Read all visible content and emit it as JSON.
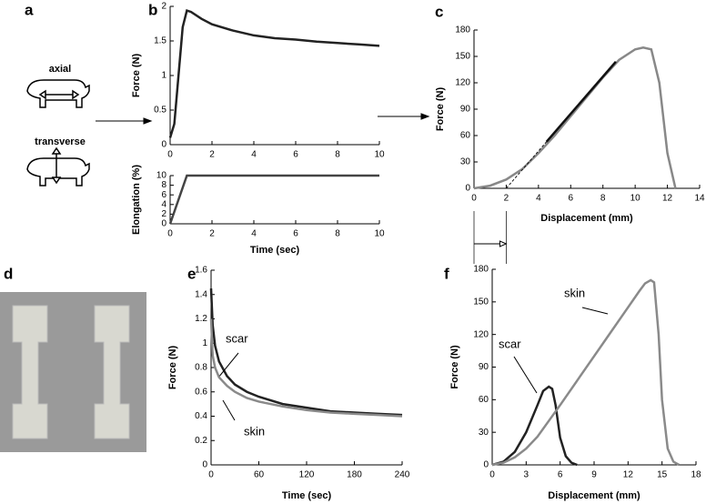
{
  "panel_labels": [
    "a",
    "b",
    "c",
    "d",
    "e",
    "f"
  ],
  "diagram": {
    "labels": [
      "axial",
      "transverse"
    ]
  },
  "chart_data": [
    {
      "type": "line",
      "ylabel": "Force (N)",
      "xlim": [
        0,
        10
      ],
      "xticks": [
        0,
        2,
        4,
        6,
        8,
        10
      ],
      "ylim": [
        0,
        2
      ],
      "yticks": [
        0,
        0.5,
        1,
        1.5,
        2
      ],
      "series": [
        {
          "color": "#222222",
          "x": [
            0,
            0.2,
            0.4,
            0.6,
            0.8,
            1,
            1.5,
            2,
            3,
            4,
            5,
            6,
            7,
            8,
            9,
            10
          ],
          "values": [
            0.1,
            0.3,
            1.0,
            1.7,
            1.94,
            1.92,
            1.82,
            1.74,
            1.65,
            1.58,
            1.54,
            1.52,
            1.49,
            1.47,
            1.45,
            1.43
          ]
        }
      ]
    },
    {
      "type": "line",
      "xlabel": "Time (sec)",
      "ylabel": "Elongation (%)",
      "xlim": [
        0,
        10
      ],
      "xticks": [
        0,
        2,
        4,
        6,
        8,
        10
      ],
      "ylim": [
        0,
        10
      ],
      "yticks": [
        0,
        2,
        4,
        6,
        8,
        10
      ],
      "series": [
        {
          "color": "#444444",
          "x": [
            0,
            0.8,
            10
          ],
          "values": [
            0,
            10,
            10
          ]
        }
      ]
    },
    {
      "type": "line",
      "xlabel": "Displacement (mm)",
      "ylabel": "Force (N)",
      "xlim": [
        0,
        14
      ],
      "xticks": [
        0,
        2,
        4,
        6,
        8,
        10,
        12,
        14
      ],
      "ylim": [
        0,
        180
      ],
      "yticks": [
        0,
        30,
        60,
        90,
        120,
        150,
        180
      ],
      "series": [
        {
          "color": "#888888",
          "x": [
            0,
            1,
            2,
            3,
            4,
            5,
            6,
            7,
            8,
            9,
            10,
            10.5,
            11,
            11.5,
            12,
            12.5
          ],
          "values": [
            0,
            3,
            10,
            22,
            40,
            60,
            82,
            104,
            126,
            146,
            158,
            160,
            158,
            120,
            40,
            0
          ]
        },
        {
          "color": "#111111",
          "x": [
            4.5,
            8.8
          ],
          "values": [
            53,
            144
          ]
        },
        {
          "color": "#111111",
          "style": "dashed",
          "x": [
            2,
            4.5
          ],
          "values": [
            0,
            53
          ]
        }
      ],
      "arrow": [
        0,
        2
      ]
    },
    {
      "type": "line",
      "xlabel": "Time (sec)",
      "ylabel": "Force (N)",
      "xlim": [
        0,
        240
      ],
      "xticks": [
        0,
        60,
        120,
        180,
        240
      ],
      "ylim": [
        0,
        1.6
      ],
      "yticks": [
        0,
        0.2,
        0.4,
        0.6,
        0.8,
        1,
        1.2,
        1.4,
        1.6
      ],
      "series": [
        {
          "name": "scar",
          "color": "#222222",
          "x": [
            0,
            2,
            5,
            10,
            20,
            30,
            45,
            60,
            90,
            120,
            150,
            180,
            210,
            240
          ],
          "values": [
            1.45,
            1.15,
            0.98,
            0.85,
            0.73,
            0.66,
            0.6,
            0.56,
            0.5,
            0.47,
            0.44,
            0.43,
            0.42,
            0.41
          ]
        },
        {
          "name": "skin",
          "color": "#8a8a8a",
          "x": [
            0,
            2,
            5,
            10,
            20,
            30,
            45,
            60,
            90,
            120,
            150,
            180,
            210,
            240
          ],
          "values": [
            1.2,
            0.9,
            0.8,
            0.72,
            0.65,
            0.6,
            0.55,
            0.52,
            0.48,
            0.45,
            0.43,
            0.42,
            0.41,
            0.4
          ]
        }
      ]
    },
    {
      "type": "line",
      "xlabel": "Displacement (mm)",
      "ylabel": "Force (N)",
      "xlim": [
        0,
        18
      ],
      "xticks": [
        0,
        3,
        6,
        9,
        12,
        15,
        18
      ],
      "ylim": [
        0,
        180
      ],
      "yticks": [
        0,
        30,
        60,
        90,
        120,
        150,
        180
      ],
      "series": [
        {
          "name": "scar",
          "color": "#222222",
          "x": [
            0,
            1,
            2,
            3,
            4,
            4.5,
            5,
            5.3,
            5.6,
            6,
            6.5,
            7,
            7.5
          ],
          "values": [
            0,
            3,
            12,
            30,
            55,
            68,
            72,
            70,
            55,
            25,
            8,
            2,
            0
          ]
        },
        {
          "name": "skin",
          "color": "#8a8a8a",
          "x": [
            0,
            1,
            2,
            3,
            4,
            6,
            8,
            10,
            12,
            13,
            13.5,
            14,
            14.3,
            14.7,
            15,
            15.5,
            16,
            16.5
          ],
          "values": [
            0,
            2,
            7,
            15,
            26,
            55,
            85,
            115,
            145,
            160,
            167,
            170,
            168,
            120,
            60,
            15,
            3,
            0
          ]
        }
      ]
    }
  ]
}
